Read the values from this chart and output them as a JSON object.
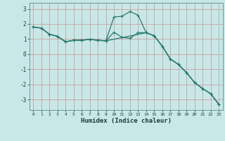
{
  "xlabel": "Humidex (Indice chaleur)",
  "background_color": "#c8e8e8",
  "grid_color_v": "#c8a0a0",
  "grid_color_h": "#c8a0a0",
  "line_color": "#2a7a6a",
  "xlim": [
    -0.5,
    23.5
  ],
  "ylim": [
    -3.7,
    3.4
  ],
  "yticks": [
    -3,
    -2,
    -1,
    0,
    1,
    2,
    3
  ],
  "xticks": [
    0,
    1,
    2,
    3,
    4,
    5,
    6,
    7,
    8,
    9,
    10,
    11,
    12,
    13,
    14,
    15,
    16,
    17,
    18,
    19,
    20,
    21,
    22,
    23
  ],
  "line1_x": [
    0,
    1,
    2,
    3,
    4,
    5,
    6,
    7,
    8,
    9,
    10,
    11,
    12,
    13,
    14,
    15,
    16,
    17,
    18,
    19,
    20,
    21,
    22,
    23
  ],
  "line1_y": [
    1.8,
    1.72,
    1.32,
    1.18,
    0.82,
    0.92,
    0.92,
    0.98,
    0.92,
    0.88,
    1.45,
    1.12,
    1.05,
    1.42,
    1.42,
    1.22,
    0.52,
    -0.32,
    -0.68,
    -1.22,
    -1.88,
    -2.28,
    -2.62,
    -3.32
  ],
  "line2_x": [
    0,
    1,
    2,
    3,
    4,
    5,
    6,
    7,
    8,
    9,
    10,
    11,
    12,
    13,
    14,
    15,
    16,
    17,
    18,
    19,
    20,
    21,
    22,
    23
  ],
  "line2_y": [
    1.8,
    1.72,
    1.32,
    1.18,
    0.82,
    0.92,
    0.92,
    0.98,
    0.92,
    0.88,
    2.45,
    2.52,
    2.82,
    2.58,
    1.42,
    1.22,
    0.52,
    -0.32,
    -0.68,
    -1.22,
    -1.88,
    -2.28,
    -2.62,
    -3.32
  ],
  "line3_x": [
    0,
    1,
    2,
    3,
    4,
    5,
    6,
    7,
    8,
    9,
    14,
    15,
    16,
    17,
    18,
    19,
    20,
    21,
    22,
    23
  ],
  "line3_y": [
    1.8,
    1.72,
    1.32,
    1.18,
    0.82,
    0.92,
    0.92,
    0.98,
    0.92,
    0.88,
    1.42,
    1.22,
    0.52,
    -0.32,
    -0.68,
    -1.22,
    -1.88,
    -2.28,
    -2.62,
    -3.32
  ]
}
